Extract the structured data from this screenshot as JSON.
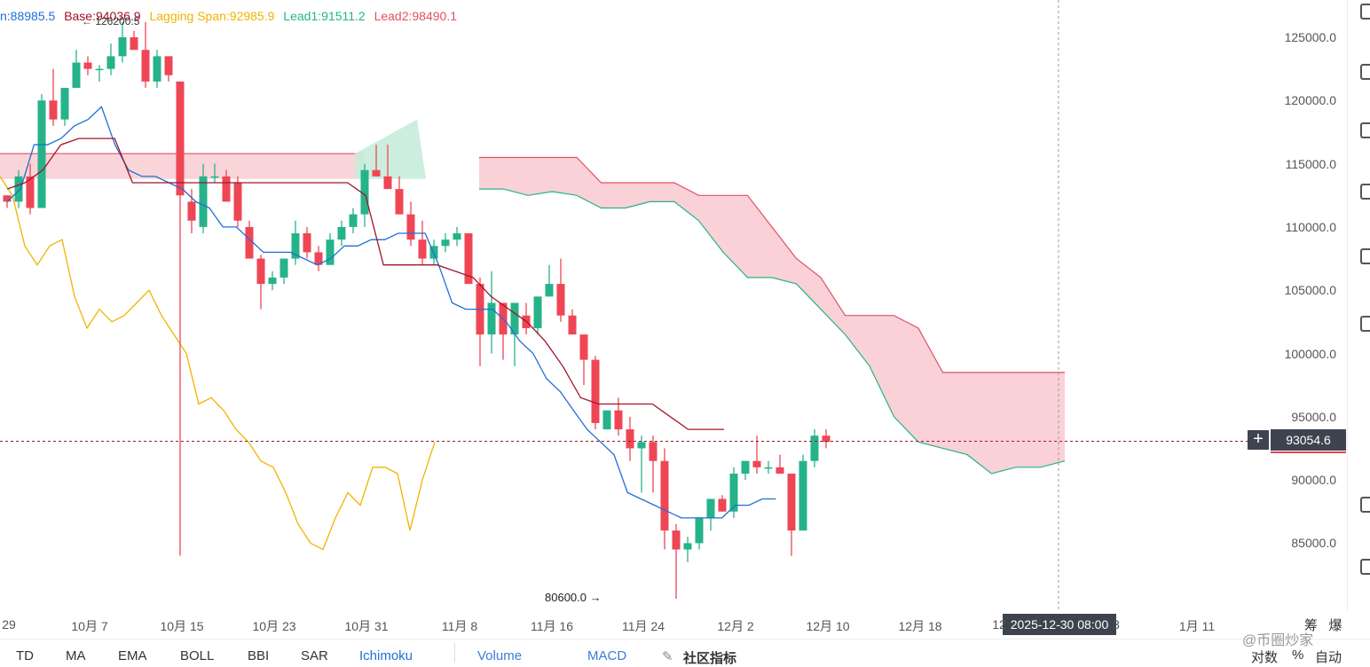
{
  "legend": {
    "conversion": "n:88985.5",
    "base": "Base:94036.9",
    "lagging": "Lagging Span:92985.9",
    "lead1": "Lead1:91511.2",
    "lead2": "Lead2:98490.1",
    "high_marker": "← 126200.5"
  },
  "colors": {
    "up": "#26b38a",
    "down": "#ef4655",
    "conversion": "#1f6fd6",
    "base": "#a3132b",
    "lagging": "#f0b400",
    "lead1": "#26b38a",
    "lead2": "#e05263",
    "cloud_bear": "#f8c9cf",
    "cloud_bull": "#c7ecdc"
  },
  "y_axis": [
    "125000.0",
    "120000.0",
    "115000.0",
    "110000.0",
    "105000.0",
    "100000.0",
    "95000.0",
    "90000.0",
    "85000.0"
  ],
  "x_axis": [
    "29",
    "10月 7",
    "10月 15",
    "10月 23",
    "10月 31",
    "11月 8",
    "11月 16",
    "11月 24",
    "12月 2",
    "12月 10",
    "12月 18",
    "12",
    "3",
    "1月 11"
  ],
  "crosshair": {
    "price": "93054.6",
    "time": "2025-12-30 08:00"
  },
  "low_label": "80600.0 →",
  "bottom_bar": {
    "indicators": [
      "TD",
      "MA",
      "EMA",
      "BOLL",
      "BBI",
      "SAR",
      "Ichimoku"
    ],
    "active": "Ichimoku",
    "sub_indicators": [
      "Volume",
      "MACD"
    ],
    "community": "社区指标"
  },
  "corner_labels": {
    "chips": "筹",
    "burst": "爆",
    "log": "对数",
    "pct": "%",
    "auto": "自动"
  },
  "watermark": "@币圈炒家",
  "chart_data": {
    "type": "candlestick",
    "ylim": [
      79000,
      127000
    ],
    "candles_ohlc": [
      [
        112500,
        112500,
        111500,
        112000
      ],
      [
        112000,
        114500,
        111500,
        114000
      ],
      [
        114000,
        115000,
        111000,
        111500
      ],
      [
        111500,
        120500,
        111500,
        120000
      ],
      [
        120000,
        122500,
        118000,
        118500
      ],
      [
        118500,
        121000,
        118000,
        121000
      ],
      [
        121000,
        124000,
        121000,
        123000
      ],
      [
        123000,
        123500,
        122000,
        122500
      ],
      [
        122500,
        122800,
        121500,
        122500
      ],
      [
        122500,
        124500,
        122000,
        123500
      ],
      [
        123500,
        126200,
        123000,
        125000
      ],
      [
        125000,
        125500,
        124000,
        124000
      ],
      [
        124000,
        126200,
        121000,
        121500
      ],
      [
        121500,
        124000,
        121000,
        123500
      ],
      [
        123500,
        123500,
        121500,
        122000
      ],
      [
        121500,
        121500,
        84000,
        112500
      ],
      [
        112000,
        113000,
        109500,
        110500
      ],
      [
        110000,
        115000,
        109500,
        114000
      ],
      [
        114000,
        115000,
        113500,
        114000
      ],
      [
        114000,
        114500,
        112000,
        112000
      ],
      [
        113500,
        114000,
        110000,
        110500
      ],
      [
        110000,
        110500,
        107500,
        107500
      ],
      [
        107500,
        107800,
        103500,
        105500
      ],
      [
        105500,
        106500,
        105000,
        106000
      ],
      [
        106000,
        107500,
        105500,
        107500
      ],
      [
        107500,
        110500,
        107000,
        109500
      ],
      [
        109500,
        110000,
        107500,
        108000
      ],
      [
        108000,
        108500,
        106500,
        107000
      ],
      [
        107000,
        109500,
        107000,
        109000
      ],
      [
        109000,
        110500,
        108500,
        110000
      ],
      [
        110000,
        111500,
        109500,
        111000
      ],
      [
        111000,
        115000,
        110000,
        114500
      ],
      [
        114500,
        116500,
        114000,
        114000
      ],
      [
        114000,
        116500,
        113500,
        113000
      ],
      [
        113000,
        114000,
        111000,
        111000
      ],
      [
        111000,
        112000,
        108500,
        109000
      ],
      [
        109000,
        110500,
        107000,
        107500
      ],
      [
        107500,
        109000,
        107000,
        108500
      ],
      [
        108500,
        109500,
        108000,
        109000
      ],
      [
        109000,
        110000,
        108500,
        109500
      ],
      [
        109500,
        109500,
        105500,
        105500
      ],
      [
        105500,
        106000,
        99000,
        101500
      ],
      [
        101500,
        106500,
        100000,
        104000
      ],
      [
        104000,
        104000,
        99500,
        101500
      ],
      [
        101500,
        104000,
        99000,
        104000
      ],
      [
        103000,
        104000,
        101500,
        102000
      ],
      [
        102000,
        104500,
        101500,
        104500
      ],
      [
        104500,
        107000,
        104500,
        105500
      ],
      [
        105500,
        107500,
        102500,
        103000
      ],
      [
        103000,
        103500,
        101500,
        101500
      ],
      [
        101500,
        101500,
        97500,
        99500
      ],
      [
        99500,
        99800,
        94000,
        94500
      ],
      [
        94000,
        95500,
        94000,
        95500
      ],
      [
        95500,
        96500,
        93500,
        94000
      ],
      [
        94000,
        95000,
        91500,
        92500
      ],
      [
        92500,
        93500,
        89000,
        93000
      ],
      [
        93000,
        93500,
        89000,
        91500
      ],
      [
        91500,
        92500,
        84500,
        86000
      ],
      [
        86000,
        86500,
        80600,
        84500
      ],
      [
        84500,
        85500,
        83500,
        85000
      ],
      [
        85000,
        87000,
        84500,
        87000
      ],
      [
        87000,
        88500,
        86000,
        88500
      ],
      [
        88500,
        88800,
        87500,
        87500
      ],
      [
        87500,
        91000,
        87000,
        90500
      ],
      [
        90500,
        91500,
        90000,
        91500
      ],
      [
        91500,
        93500,
        90500,
        91000
      ],
      [
        91000,
        91500,
        90500,
        91000
      ],
      [
        91000,
        92000,
        90500,
        90500
      ],
      [
        90500,
        90500,
        84000,
        86000
      ],
      [
        86000,
        92000,
        86000,
        91500
      ],
      [
        91500,
        94000,
        91000,
        93500
      ],
      [
        93500,
        94000,
        92500,
        93000
      ]
    ],
    "conversion": [
      112000,
      113000,
      116500,
      116500,
      117000,
      118000,
      118500,
      119500,
      116500,
      114500,
      114000,
      114000,
      113500,
      113000,
      112000,
      111500,
      110000,
      110000,
      109000,
      108000,
      108000,
      108000,
      107500,
      107000,
      107500,
      108500,
      108500,
      109000,
      109000,
      109500,
      109500,
      109500,
      107000,
      104000,
      103500,
      103500,
      103500,
      102500,
      101000,
      100000,
      98000,
      97000,
      95500,
      94000,
      93000,
      92000,
      89000,
      88500,
      88000,
      87500,
      87000,
      87000,
      87000,
      87000,
      88000,
      88000,
      88500,
      88500
    ],
    "base": [
      113000,
      113500,
      114500,
      116500,
      117000,
      117000,
      117000,
      113500,
      113500,
      113500,
      113500,
      113500,
      113500,
      113500,
      113500,
      113500,
      113500,
      113500,
      113500,
      113500,
      112500,
      107000,
      107000,
      107000,
      107000,
      106500,
      106000,
      104500,
      103500,
      102500,
      101000,
      99000,
      96500,
      96000,
      96000,
      96000,
      96000,
      95000,
      94000,
      94000,
      94000
    ],
    "lagging": [
      114000,
      112500,
      108500,
      107000,
      108500,
      109000,
      104500,
      102000,
      103500,
      102500,
      103000,
      104000,
      105000,
      103000,
      101500,
      100000,
      96000,
      96500,
      95500,
      94000,
      93000,
      91500,
      91000,
      89000,
      86500,
      85000,
      84500,
      87000,
      89000,
      88000,
      91000,
      91000,
      90500,
      86000,
      90000,
      93000
    ]
  }
}
